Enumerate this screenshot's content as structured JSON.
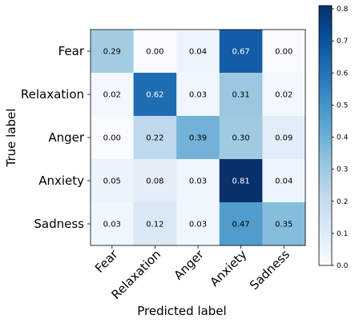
{
  "chart_data": {
    "type": "heatmap",
    "xlabel": "Predicted label",
    "ylabel": "True label",
    "x_categories": [
      "Fear",
      "Relaxation",
      "Anger",
      "Anxiety",
      "Sadness"
    ],
    "y_categories": [
      "Fear",
      "Relaxation",
      "Anger",
      "Anxiety",
      "Sadness"
    ],
    "values": [
      [
        0.29,
        0.0,
        0.04,
        0.67,
        0.0
      ],
      [
        0.02,
        0.62,
        0.03,
        0.31,
        0.02
      ],
      [
        0.0,
        0.22,
        0.39,
        0.3,
        0.09
      ],
      [
        0.05,
        0.08,
        0.03,
        0.81,
        0.04
      ],
      [
        0.03,
        0.12,
        0.03,
        0.47,
        0.35
      ]
    ],
    "value_labels": [
      [
        "0.29",
        "0.00",
        "0.04",
        "0.67",
        "0.00"
      ],
      [
        "0.02",
        "0.62",
        "0.03",
        "0.31",
        "0.02"
      ],
      [
        "0.00",
        "0.22",
        "0.39",
        "0.30",
        "0.09"
      ],
      [
        "0.05",
        "0.08",
        "0.03",
        "0.81",
        "0.04"
      ],
      [
        "0.03",
        "0.12",
        "0.03",
        "0.47",
        "0.35"
      ]
    ],
    "colormap": "Blues",
    "vmin": 0.0,
    "vmax": 0.81,
    "colorbar_ticks": [
      "0.0",
      "0.1",
      "0.2",
      "0.3",
      "0.4",
      "0.5",
      "0.6",
      "0.7",
      "0.8"
    ],
    "colorbar_tick_values": [
      0.0,
      0.1,
      0.2,
      0.3,
      0.4,
      0.5,
      0.6,
      0.7,
      0.8
    ],
    "x_tick_rotation_deg": 45,
    "grid": false
  }
}
